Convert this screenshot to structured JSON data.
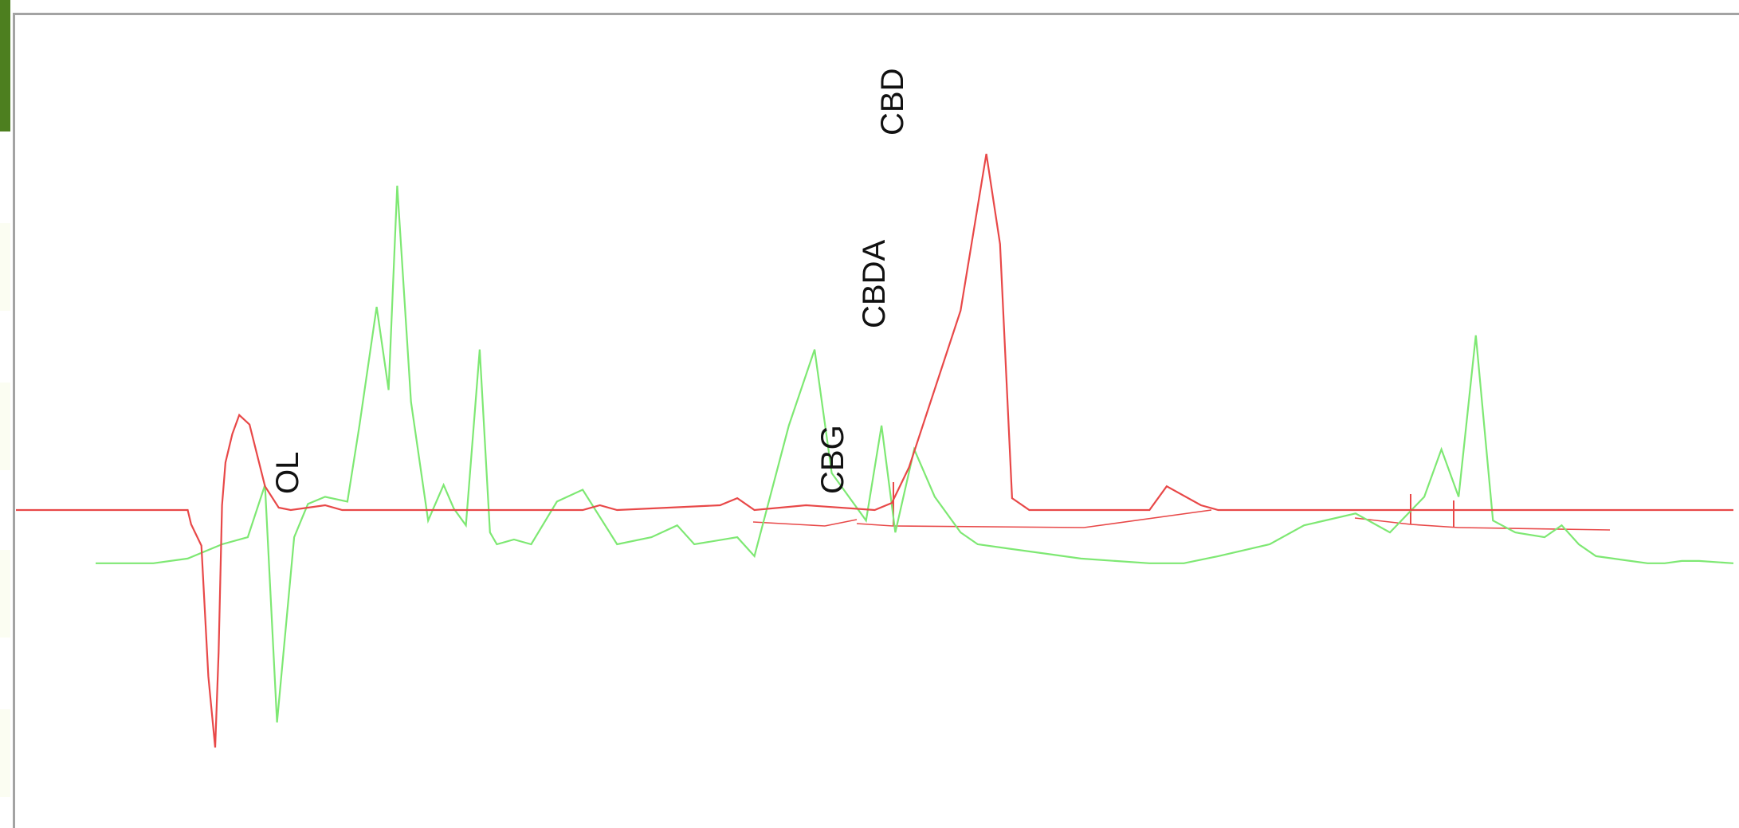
{
  "colors": {
    "trace_red": "#e84848",
    "trace_green": "#7ee873",
    "frame": "#a3a3a3",
    "left_tab": "#4d7f1f"
  },
  "chart_data": {
    "type": "line",
    "title": "",
    "xlabel": "",
    "ylabel": "",
    "xlim": [
      0,
      100
    ],
    "ylim": [
      -100,
      150
    ],
    "grid": false,
    "legend": "none",
    "peak_labels": [
      "OL",
      "CBG",
      "CBDA",
      "CBD"
    ],
    "series": [
      {
        "color": "#e84848",
        "x": [
          0,
          10,
          10.2,
          10.8,
          11.2,
          11.6,
          11.8,
          12,
          12.2,
          12.6,
          13,
          13.6,
          14.5,
          15.3,
          16,
          17,
          18,
          19,
          22,
          25,
          33,
          34,
          35,
          41,
          42,
          43,
          46,
          50,
          51,
          52,
          55,
          56.5,
          57.3,
          58,
          59,
          60,
          61,
          63,
          66,
          67,
          69,
          70,
          100
        ],
        "y": [
          0,
          0,
          -6,
          -15,
          -70,
          -100,
          -60,
          2,
          20,
          32,
          40,
          36,
          10,
          1,
          0,
          1,
          2,
          0,
          0,
          0,
          0,
          2,
          0,
          2,
          5,
          0,
          2,
          0,
          3,
          18,
          84,
          150,
          112,
          5,
          0,
          0,
          0,
          0,
          0,
          10,
          2,
          0,
          0
        ]
      },
      {
        "color": "#7ee873",
        "x": [
          0,
          5,
          8,
          10,
          12,
          13.5,
          14.5,
          15.2,
          16.2,
          17,
          18,
          19.3,
          20,
          21,
          21.7,
          22.2,
          23,
          24,
          24.9,
          25.5,
          26.2,
          27,
          27.6,
          28,
          29,
          30,
          31.5,
          33,
          35,
          37,
          38.5,
          39.5,
          42,
          43,
          45,
          46.5,
          47.5,
          49.5,
          50.4,
          51.2,
          52.3,
          53.5,
          55,
          56,
          58,
          60,
          62,
          64,
          66,
          68,
          70,
          73,
          75,
          78,
          80,
          82,
          83,
          84,
          85,
          86,
          87.3,
          89,
          90,
          91,
          92,
          93,
          94,
          95,
          96,
          97,
          98,
          100
        ],
        "y": [
          -8,
          -8,
          -8,
          -6,
          0,
          3,
          25,
          -75,
          3,
          17,
          20,
          18,
          50,
          100,
          65,
          151,
          60,
          10,
          25,
          15,
          8,
          82,
          5,
          0,
          2,
          0,
          18,
          23,
          0,
          3,
          8,
          0,
          3,
          -5,
          50,
          82,
          30,
          10,
          50,
          5,
          40,
          20,
          5,
          0,
          -2,
          -4,
          -6,
          -7,
          -8,
          -8,
          -5,
          0,
          8,
          13,
          5,
          20,
          40,
          20,
          88,
          10,
          5,
          3,
          8,
          0,
          -5,
          -6,
          -7,
          -8,
          -8,
          -7,
          -7,
          -8
        ]
      }
    ]
  }
}
